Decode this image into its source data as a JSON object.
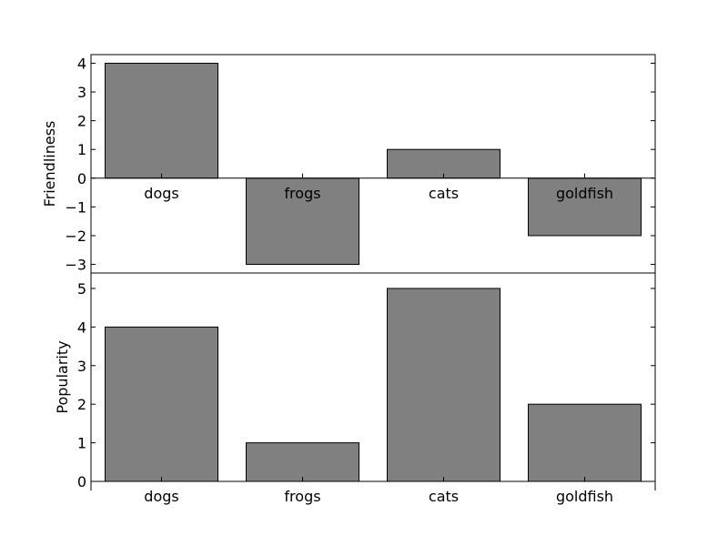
{
  "chart_data": [
    {
      "type": "bar",
      "categories": [
        "dogs",
        "frogs",
        "cats",
        "goldfish"
      ],
      "values": [
        4,
        -3,
        1,
        -2
      ],
      "ylabel": "Friendliness",
      "ylim": [
        -3.3,
        4.3
      ],
      "yticks": [
        -3,
        -2,
        -1,
        0,
        1,
        2,
        3,
        4
      ],
      "ytick_labels": [
        "−3",
        "−2",
        "−1",
        "0",
        "1",
        "2",
        "3",
        "4"
      ],
      "category_labels_at_zero": true,
      "bar_color": "#808080",
      "edge_color": "#000000",
      "grid": false
    },
    {
      "type": "bar",
      "categories": [
        "dogs",
        "frogs",
        "cats",
        "goldfish"
      ],
      "values": [
        4,
        1,
        5,
        2
      ],
      "ylabel": "Popularity",
      "ylim": [
        0,
        5.4
      ],
      "yticks": [
        0,
        1,
        2,
        3,
        4,
        5
      ],
      "ytick_labels": [
        "0",
        "1",
        "2",
        "3",
        "4",
        "5"
      ],
      "bar_color": "#808080",
      "edge_color": "#000000",
      "grid": false
    }
  ]
}
